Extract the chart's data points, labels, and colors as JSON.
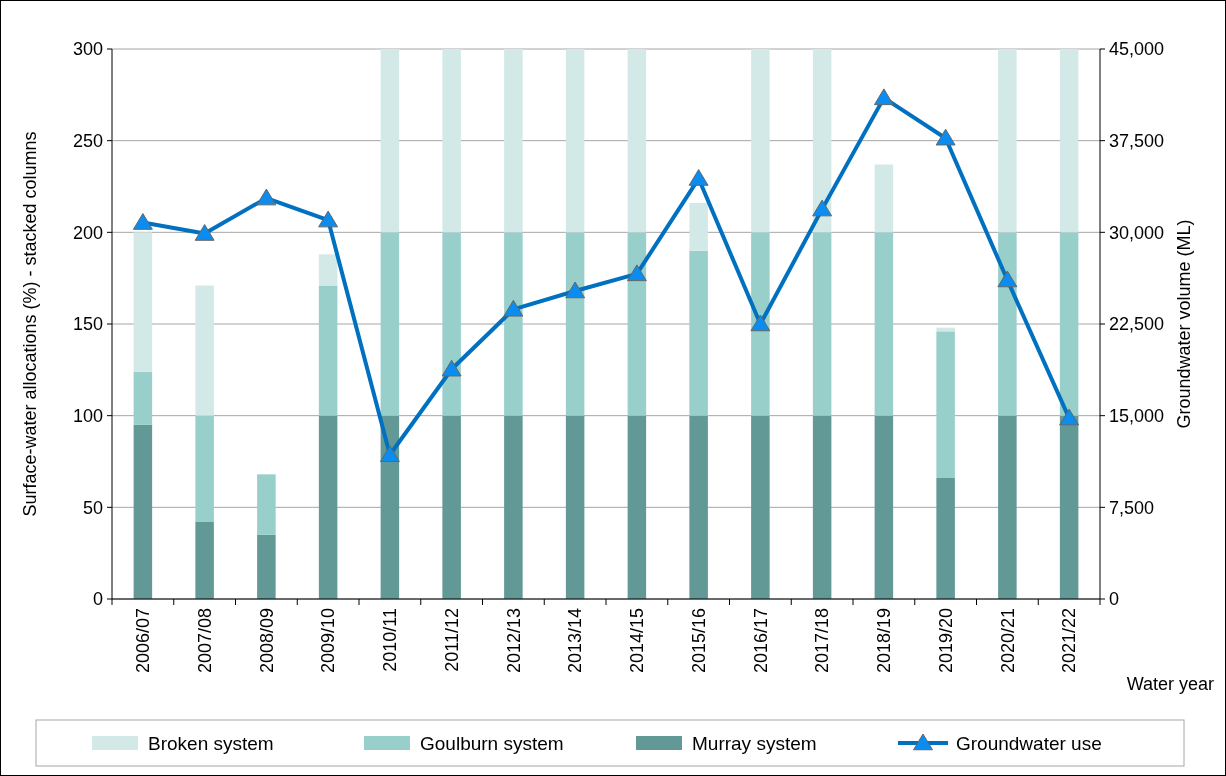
{
  "chart_data": {
    "type": "bar",
    "stacked": true,
    "xlabel": "Water year",
    "ylabel": "Surface-water allocations (%) - stacked columns",
    "y2label": "Groundwater volume (ML)",
    "categories": [
      "2006/07",
      "2007/08",
      "2008/09",
      "2009/10",
      "2010/11",
      "2011/12",
      "2012/13",
      "2013/14",
      "2014/15",
      "2015/16",
      "2016/17",
      "2017/18",
      "2018/19",
      "2019/20",
      "2020/21",
      "2021/22"
    ],
    "series": [
      {
        "name": "Murray system",
        "color": "#629996",
        "values": [
          95,
          42,
          35,
          100,
          100,
          100,
          100,
          100,
          100,
          100,
          100,
          100,
          100,
          66,
          100,
          100
        ]
      },
      {
        "name": "Goulburn system",
        "color": "#98cfcb",
        "values": [
          29,
          58,
          33,
          71,
          100,
          100,
          100,
          100,
          100,
          90,
          100,
          100,
          100,
          80,
          100,
          100
        ]
      },
      {
        "name": "Broken system",
        "color": "#d3e9e7",
        "values": [
          76,
          71,
          0,
          17,
          100,
          100,
          100,
          100,
          100,
          26,
          100,
          100,
          37,
          2,
          100,
          100
        ]
      },
      {
        "name": "Groundwater use",
        "type": "line",
        "axis": "y2",
        "color": "#0070c0",
        "marker": "triangle",
        "values": [
          30800,
          29900,
          32800,
          31000,
          11800,
          18800,
          23700,
          25200,
          26600,
          34400,
          22500,
          31900,
          41000,
          37700,
          26100,
          14800
        ]
      }
    ],
    "ylim": [
      0,
      300
    ],
    "yticks": [
      0,
      50,
      100,
      150,
      200,
      250,
      300
    ],
    "y2lim": [
      0,
      45000
    ],
    "y2ticks": [
      {
        "value": 0,
        "label": "0"
      },
      {
        "value": 7500,
        "label": "7,500"
      },
      {
        "value": 15000,
        "label": "15,000"
      },
      {
        "value": 22500,
        "label": "22,500"
      },
      {
        "value": 30000,
        "label": "30,000"
      },
      {
        "value": 37500,
        "label": "37,500"
      },
      {
        "value": 45000,
        "label": "45,000"
      }
    ],
    "grid": "y",
    "legend": "bottom"
  }
}
